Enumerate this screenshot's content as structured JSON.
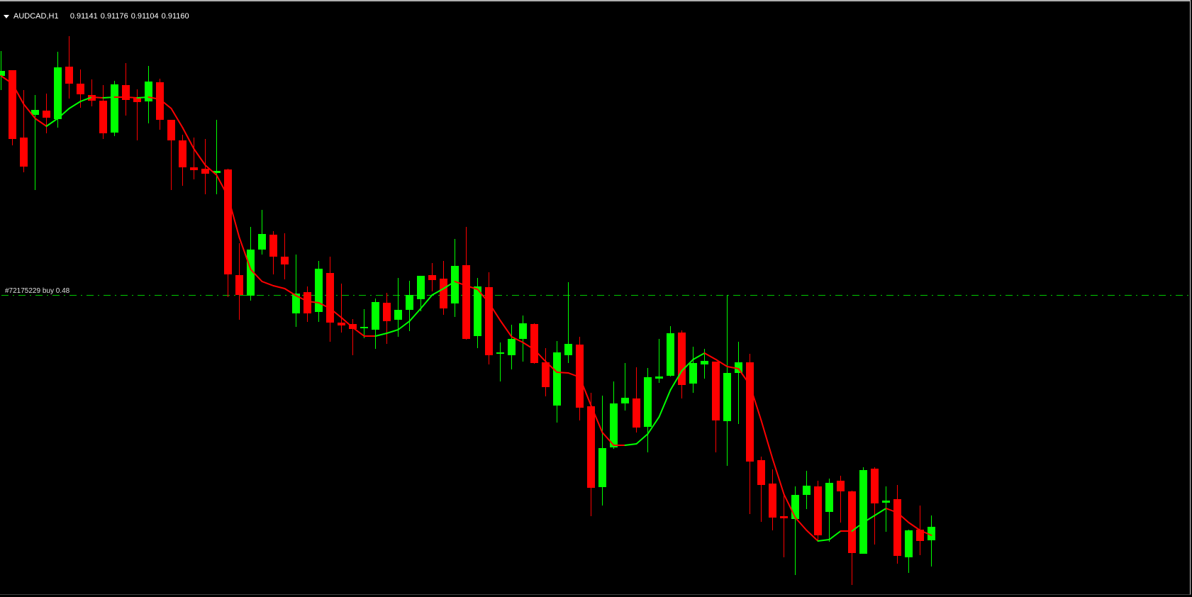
{
  "header": {
    "symbol_timeframe": "AUDCAD,H1",
    "open": "0.91141",
    "high": "0.91176",
    "low": "0.91104",
    "close": "0.91160"
  },
  "order": {
    "label": "#72175229 buy 0.48",
    "price": 0.91487,
    "line_color": "#00c800"
  },
  "colors": {
    "background": "#000000",
    "bull": "#00ff00",
    "bear": "#ff0000",
    "ma_up": "#00ff00",
    "ma_down": "#ff0000"
  },
  "chart_data": {
    "type": "candlestick",
    "symbol": "AUDCAD",
    "timeframe": "H1",
    "grid": false,
    "ohlc": [
      [
        0.91796,
        0.91831,
        0.91776,
        0.91803
      ],
      [
        0.91804,
        0.91804,
        0.91698,
        0.91707
      ],
      [
        0.91709,
        0.91776,
        0.9166,
        0.91668
      ],
      [
        0.91741,
        0.91769,
        0.91635,
        0.91748
      ],
      [
        0.91747,
        0.91771,
        0.91715,
        0.91737
      ],
      [
        0.91735,
        0.9183,
        0.91723,
        0.91808
      ],
      [
        0.91809,
        0.91852,
        0.91764,
        0.91785
      ],
      [
        0.91785,
        0.91805,
        0.91751,
        0.9177
      ],
      [
        0.91769,
        0.91791,
        0.91753,
        0.91761
      ],
      [
        0.91761,
        0.91783,
        0.91707,
        0.91715
      ],
      [
        0.91716,
        0.91789,
        0.91711,
        0.91784
      ],
      [
        0.91783,
        0.91814,
        0.9174,
        0.91762
      ],
      [
        0.91765,
        0.91777,
        0.91705,
        0.91759
      ],
      [
        0.9176,
        0.9181,
        0.91729,
        0.91788
      ],
      [
        0.91787,
        0.91792,
        0.9172,
        0.91734
      ],
      [
        0.91734,
        0.91734,
        0.91635,
        0.91705
      ],
      [
        0.91705,
        0.91713,
        0.91641,
        0.91667
      ],
      [
        0.91667,
        0.91709,
        0.9165,
        0.91663
      ],
      [
        0.91665,
        0.91707,
        0.91629,
        0.91658
      ],
      [
        0.91659,
        0.91734,
        0.91629,
        0.91662
      ],
      [
        0.91664,
        0.91665,
        0.91484,
        0.91516
      ],
      [
        0.91515,
        0.9156,
        0.91452,
        0.91487
      ],
      [
        0.91486,
        0.91583,
        0.91479,
        0.91551
      ],
      [
        0.91551,
        0.91607,
        0.91544,
        0.91573
      ],
      [
        0.91572,
        0.91577,
        0.91516,
        0.91541
      ],
      [
        0.91541,
        0.91574,
        0.91509,
        0.9153
      ],
      [
        0.91461,
        0.91544,
        0.91442,
        0.91489
      ],
      [
        0.91491,
        0.91499,
        0.91449,
        0.91461
      ],
      [
        0.91463,
        0.91535,
        0.91449,
        0.91524
      ],
      [
        0.91518,
        0.91541,
        0.91421,
        0.91448
      ],
      [
        0.91448,
        0.91503,
        0.91434,
        0.91444
      ],
      [
        0.91446,
        0.91453,
        0.91402,
        0.91439
      ],
      [
        0.9144,
        0.91467,
        0.91426,
        0.91442
      ],
      [
        0.91438,
        0.91482,
        0.91411,
        0.91477
      ],
      [
        0.91476,
        0.9149,
        0.91418,
        0.9145
      ],
      [
        0.91452,
        0.91511,
        0.91428,
        0.91466
      ],
      [
        0.91466,
        0.91507,
        0.91436,
        0.91487
      ],
      [
        0.91481,
        0.91514,
        0.91464,
        0.91514
      ],
      [
        0.91515,
        0.91532,
        0.91492,
        0.91508
      ],
      [
        0.9151,
        0.91535,
        0.91459,
        0.91468
      ],
      [
        0.91475,
        0.91566,
        0.91456,
        0.91528
      ],
      [
        0.91529,
        0.91583,
        0.91424,
        0.91425
      ],
      [
        0.91429,
        0.91511,
        0.91412,
        0.91499
      ],
      [
        0.91498,
        0.91519,
        0.91389,
        0.91402
      ],
      [
        0.91405,
        0.9142,
        0.91365,
        0.91406
      ],
      [
        0.91402,
        0.91445,
        0.91382,
        0.91425
      ],
      [
        0.91425,
        0.91458,
        0.91393,
        0.91447
      ],
      [
        0.91446,
        0.91447,
        0.9139,
        0.91391
      ],
      [
        0.91392,
        0.91412,
        0.91344,
        0.91357
      ],
      [
        0.91331,
        0.91422,
        0.91307,
        0.91406
      ],
      [
        0.91402,
        0.91505,
        0.91391,
        0.91418
      ],
      [
        0.91417,
        0.91428,
        0.9131,
        0.91328
      ],
      [
        0.9133,
        0.91349,
        0.91175,
        0.91215
      ],
      [
        0.91216,
        0.91345,
        0.9119,
        0.91271
      ],
      [
        0.91272,
        0.91365,
        0.9127,
        0.91334
      ],
      [
        0.91334,
        0.91391,
        0.91324,
        0.91342
      ],
      [
        0.91341,
        0.91385,
        0.91293,
        0.913
      ],
      [
        0.91301,
        0.91384,
        0.91265,
        0.91371
      ],
      [
        0.91369,
        0.91425,
        0.91363,
        0.91372
      ],
      [
        0.91373,
        0.91443,
        0.91372,
        0.91433
      ],
      [
        0.91434,
        0.91437,
        0.91341,
        0.9136
      ],
      [
        0.91362,
        0.91414,
        0.91349,
        0.91391
      ],
      [
        0.91389,
        0.91411,
        0.91369,
        0.91394
      ],
      [
        0.91393,
        0.91393,
        0.91265,
        0.9131
      ],
      [
        0.91309,
        0.91487,
        0.91246,
        0.91377
      ],
      [
        0.91377,
        0.91421,
        0.91305,
        0.91392
      ],
      [
        0.91392,
        0.91404,
        0.91178,
        0.91252
      ],
      [
        0.91254,
        0.91259,
        0.91167,
        0.91219
      ],
      [
        0.91221,
        0.91241,
        0.91155,
        0.91173
      ],
      [
        0.91175,
        0.91206,
        0.91117,
        0.91172
      ],
      [
        0.91171,
        0.91217,
        0.91092,
        0.91205
      ],
      [
        0.91205,
        0.91239,
        0.91185,
        0.91218
      ],
      [
        0.91217,
        0.91225,
        0.9114,
        0.91148
      ],
      [
        0.91181,
        0.91228,
        0.91139,
        0.91222
      ],
      [
        0.91225,
        0.91232,
        0.91166,
        0.9121
      ],
      [
        0.9121,
        0.91211,
        0.91078,
        0.91123
      ],
      [
        0.91122,
        0.91244,
        0.91122,
        0.9124
      ],
      [
        0.91242,
        0.91244,
        0.91135,
        0.91193
      ],
      [
        0.91194,
        0.91217,
        0.91153,
        0.91197
      ],
      [
        0.91199,
        0.91219,
        0.91108,
        0.91119
      ],
      [
        0.91117,
        0.91156,
        0.91095,
        0.91155
      ],
      [
        0.91156,
        0.9119,
        0.9112,
        0.9114
      ],
      [
        0.91141,
        0.91176,
        0.91104,
        0.9116
      ]
    ],
    "moving_average": [
      0.91796,
      0.91785,
      0.91756,
      0.91736,
      0.91725,
      0.91736,
      0.9175,
      0.9176,
      0.91766,
      0.91765,
      0.91766,
      0.91766,
      0.91765,
      0.91766,
      0.91763,
      0.9175,
      0.91723,
      0.91693,
      0.9167,
      0.91656,
      0.91626,
      0.91568,
      0.91523,
      0.91506,
      0.915,
      0.91496,
      0.91486,
      0.91478,
      0.91476,
      0.91468,
      0.91455,
      0.91441,
      0.91429,
      0.91429,
      0.91433,
      0.91438,
      0.9145,
      0.91468,
      0.91487,
      0.91496,
      0.91506,
      0.915,
      0.91495,
      0.91476,
      0.91451,
      0.91428,
      0.9142,
      0.9141,
      0.91393,
      0.91378,
      0.91377,
      0.91371,
      0.91331,
      0.91293,
      0.91275,
      0.91275,
      0.91277,
      0.91291,
      0.91315,
      0.91353,
      0.9138,
      0.91396,
      0.91405,
      0.91396,
      0.91386,
      0.91383,
      0.9136,
      0.9131,
      0.91256,
      0.91206,
      0.91173,
      0.91155,
      0.9114,
      0.91142,
      0.91154,
      0.91154,
      0.91166,
      0.91176,
      0.91186,
      0.9118,
      0.91166,
      0.91155,
      0.91148
    ]
  }
}
